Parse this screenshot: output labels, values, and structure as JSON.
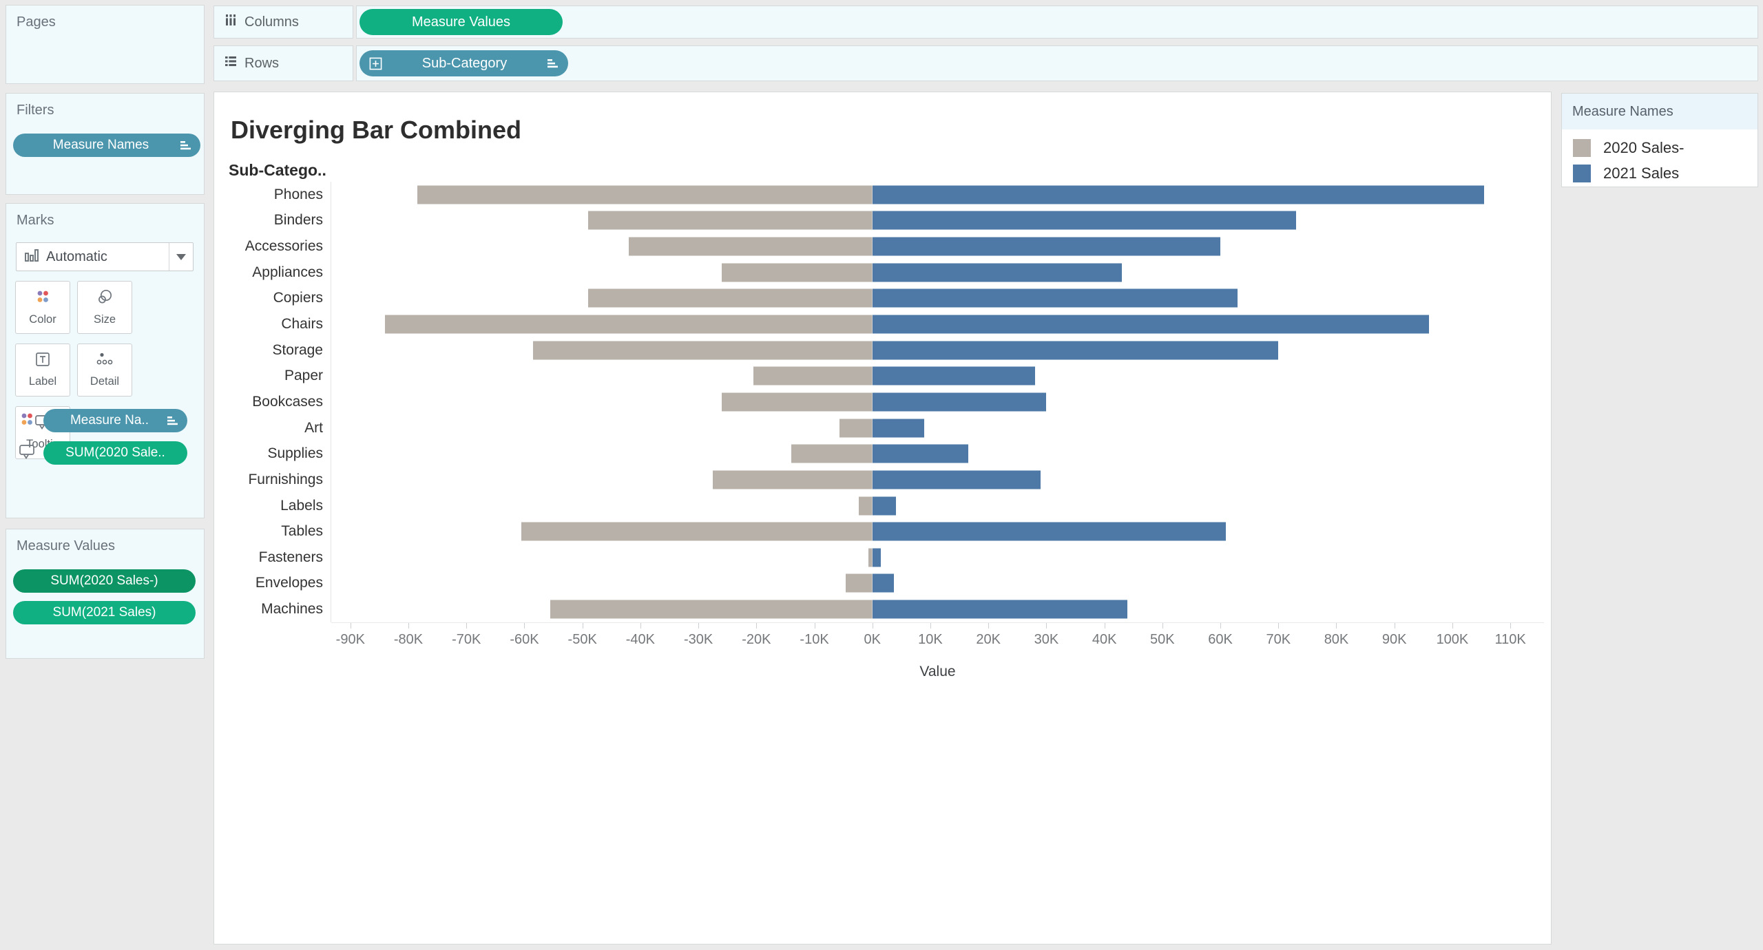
{
  "colors": {
    "pill_blue": "#4b96ad",
    "pill_green": "#10b083",
    "pill_green_dark": "#0c9464",
    "bar_gray": "#b8b1aa",
    "bar_blue": "#4e79a7",
    "panel_bg": "#f0f9fc",
    "canvas_bg": "#eaeaea"
  },
  "shelves": {
    "columns": {
      "label": "Columns",
      "pills": [
        {
          "label": "Measure Values",
          "color": "green"
        }
      ]
    },
    "rows": {
      "label": "Rows",
      "pills": [
        {
          "label": "Sub-Category",
          "color": "blue",
          "left_icon": "plus-box",
          "right_icon": "sort"
        }
      ]
    }
  },
  "sidebar": {
    "pages": {
      "title": "Pages"
    },
    "filters": {
      "title": "Filters",
      "pills": [
        {
          "label": "Measure Names",
          "color": "blue",
          "right_icon": "sort"
        }
      ]
    },
    "marks": {
      "title": "Marks",
      "type_selector": {
        "label": "Automatic",
        "icon": "bar-chart"
      },
      "buttons": [
        {
          "label": "Color",
          "icon": "color-dots"
        },
        {
          "label": "Size",
          "icon": "size-circles"
        },
        {
          "label": "Label",
          "icon": "label-t"
        },
        {
          "label": "Detail",
          "icon": "detail-dots"
        },
        {
          "label": "Tooltip",
          "icon": "tooltip-bubble"
        }
      ],
      "pills": [
        {
          "label": "Measure Na..",
          "color": "blue",
          "outer_icon": "color-dots",
          "right_icon": "sort"
        },
        {
          "label": "SUM(2020 Sale..",
          "color": "green",
          "outer_icon": "tooltip-bubble"
        }
      ]
    },
    "measure_values": {
      "title": "Measure Values",
      "pills": [
        {
          "label": "SUM(2020 Sales-)",
          "color": "green-dark"
        },
        {
          "label": "SUM(2021 Sales)",
          "color": "green"
        }
      ]
    }
  },
  "legend": {
    "title": "Measure Names",
    "items": [
      {
        "label": "2020 Sales-",
        "color": "#b8b1aa"
      },
      {
        "label": "2021 Sales",
        "color": "#4e79a7"
      }
    ]
  },
  "chart_data": {
    "type": "bar",
    "variant": "horizontal-diverging",
    "title": "Diverging Bar Combined",
    "row_axis_header": "Sub-Catego..",
    "categories": [
      "Phones",
      "Binders",
      "Accessories",
      "Appliances",
      "Copiers",
      "Chairs",
      "Storage",
      "Paper",
      "Bookcases",
      "Art",
      "Supplies",
      "Furnishings",
      "Labels",
      "Tables",
      "Fasteners",
      "Envelopes",
      "Machines"
    ],
    "series": [
      {
        "name": "2020 Sales-",
        "color": "#b8b1aa",
        "values": [
          -78500,
          -49000,
          -42000,
          -26000,
          -49000,
          -84000,
          -58500,
          -20500,
          -26000,
          -5700,
          -14000,
          -27500,
          -2400,
          -60500,
          -700,
          -4600,
          -55500
        ]
      },
      {
        "name": "2021 Sales",
        "color": "#4e79a7",
        "values": [
          105500,
          73000,
          60000,
          43000,
          63000,
          96000,
          70000,
          28000,
          30000,
          8900,
          16500,
          29000,
          4100,
          61000,
          1500,
          3700,
          44000
        ]
      }
    ],
    "xlabel": "Value",
    "xlim": [
      -93300,
      115800
    ],
    "x_ticks": [
      {
        "value": -90000,
        "label": "-90K"
      },
      {
        "value": -80000,
        "label": "-80K"
      },
      {
        "value": -70000,
        "label": "-70K"
      },
      {
        "value": -60000,
        "label": "-60K"
      },
      {
        "value": -50000,
        "label": "-50K"
      },
      {
        "value": -40000,
        "label": "-40K"
      },
      {
        "value": -30000,
        "label": "-30K"
      },
      {
        "value": -20000,
        "label": "-20K"
      },
      {
        "value": -10000,
        "label": "-10K"
      },
      {
        "value": 0,
        "label": "0K"
      },
      {
        "value": 10000,
        "label": "10K"
      },
      {
        "value": 20000,
        "label": "20K"
      },
      {
        "value": 30000,
        "label": "30K"
      },
      {
        "value": 40000,
        "label": "40K"
      },
      {
        "value": 50000,
        "label": "50K"
      },
      {
        "value": 60000,
        "label": "60K"
      },
      {
        "value": 70000,
        "label": "70K"
      },
      {
        "value": 80000,
        "label": "80K"
      },
      {
        "value": 90000,
        "label": "90K"
      },
      {
        "value": 100000,
        "label": "100K"
      },
      {
        "value": 110000,
        "label": "110K"
      }
    ],
    "grid": false,
    "legend_position": "top-right"
  }
}
